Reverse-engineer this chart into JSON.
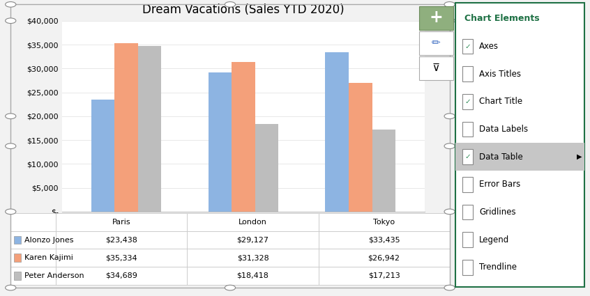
{
  "title": "Dream Vacations (Sales YTD 2020)",
  "categories": [
    "Paris",
    "London",
    "Tokyo"
  ],
  "series": [
    {
      "name": "Alonzo Jones",
      "color": "#8DB4E2",
      "values": [
        23438,
        29127,
        33435
      ]
    },
    {
      "name": "Karen Kajimi",
      "color": "#F4A07A",
      "values": [
        35334,
        31328,
        26942
      ]
    },
    {
      "name": "Peter Anderson",
      "color": "#BDBDBD",
      "values": [
        34689,
        18418,
        17213
      ]
    }
  ],
  "ylim": [
    0,
    40000
  ],
  "yticks": [
    0,
    5000,
    10000,
    15000,
    20000,
    25000,
    30000,
    35000,
    40000
  ],
  "ytick_labels": [
    "$-",
    "$5,000",
    "$10,000",
    "$15,000",
    "$20,000",
    "$25,000",
    "$30,000",
    "$35,000",
    "$40,000"
  ],
  "grid_color": "#E8E8E8",
  "table_values": {
    "Alonzo Jones": [
      "$23,438",
      "$29,127",
      "$33,435"
    ],
    "Karen Kajimi": [
      "$35,334",
      "$31,328",
      "$26,942"
    ],
    "Peter Anderson": [
      "$34,689",
      "$18,418",
      "$17,213"
    ]
  },
  "chart_elements_title": "Chart Elements",
  "chart_elements_items": [
    {
      "label": "Axes",
      "checked": true,
      "highlighted": false
    },
    {
      "label": "Axis Titles",
      "checked": false,
      "highlighted": false
    },
    {
      "label": "Chart Title",
      "checked": true,
      "highlighted": false
    },
    {
      "label": "Data Labels",
      "checked": false,
      "highlighted": false
    },
    {
      "label": "Data Table",
      "checked": true,
      "highlighted": true,
      "arrow": true
    },
    {
      "label": "Error Bars",
      "checked": false,
      "highlighted": false
    },
    {
      "label": "Gridlines",
      "checked": false,
      "highlighted": false
    },
    {
      "label": "Legend",
      "checked": false,
      "highlighted": false
    },
    {
      "label": "Trendline",
      "checked": false,
      "highlighted": false
    }
  ],
  "title_fontsize": 12,
  "axis_fontsize": 8,
  "table_fontsize": 8,
  "excel_bg": "#F2F2F2",
  "panel_border_color": "#1F7145",
  "panel_bg": "#FFFFFF",
  "plus_btn_color": "#8FAF7E",
  "highlight_color": "#C6C6C6"
}
